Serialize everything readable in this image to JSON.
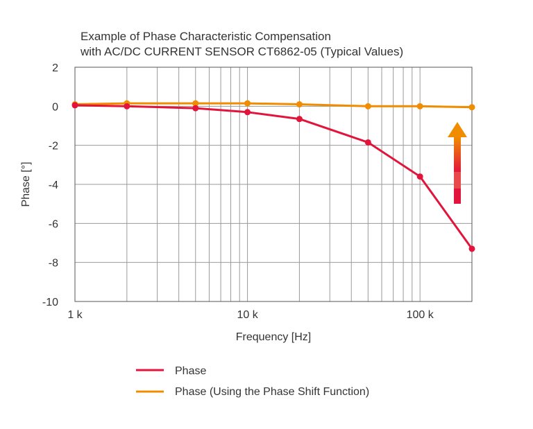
{
  "chart_data": {
    "type": "line",
    "title_lines": [
      "Example of Phase Characteristic Compensation",
      "with AC/DC CURRENT SENSOR CT6862-05 (Typical Values)"
    ],
    "xlabel": "Frequency [Hz]",
    "ylabel": "Phase [°]",
    "x_scale": "log",
    "xlim": [
      1000,
      200000
    ],
    "ylim": [
      -10,
      2
    ],
    "x_ticks": [
      {
        "value": 1000,
        "label": "1 k"
      },
      {
        "value": 10000,
        "label": "10 k"
      },
      {
        "value": 100000,
        "label": "100 k"
      }
    ],
    "y_ticks": [
      {
        "value": 2,
        "label": "2"
      },
      {
        "value": 0,
        "label": "0"
      },
      {
        "value": -2,
        "label": "-2"
      },
      {
        "value": -4,
        "label": "-4"
      },
      {
        "value": -6,
        "label": "-6"
      },
      {
        "value": -8,
        "label": "-8"
      },
      {
        "value": -10,
        "label": "-10"
      }
    ],
    "grid": true,
    "legend_position": "bottom",
    "series": [
      {
        "name": "Phase",
        "color": "#e3143c",
        "x": [
          1000,
          2000,
          5000,
          10000,
          20000,
          50000,
          100000,
          200000
        ],
        "y": [
          0.05,
          0.0,
          -0.1,
          -0.3,
          -0.65,
          -1.85,
          -3.6,
          -7.3
        ]
      },
      {
        "name": "Phase (Using the Phase Shift Function)",
        "color": "#f08c00",
        "x": [
          1000,
          2000,
          5000,
          10000,
          20000,
          50000,
          100000,
          200000
        ],
        "y": [
          0.1,
          0.15,
          0.15,
          0.15,
          0.1,
          0.0,
          0.0,
          -0.05
        ]
      }
    ],
    "annotations": [
      {
        "type": "arrow",
        "direction": "up",
        "meaning": "phase compensation",
        "colors": [
          "#e3143c",
          "#f08c00"
        ]
      }
    ]
  }
}
